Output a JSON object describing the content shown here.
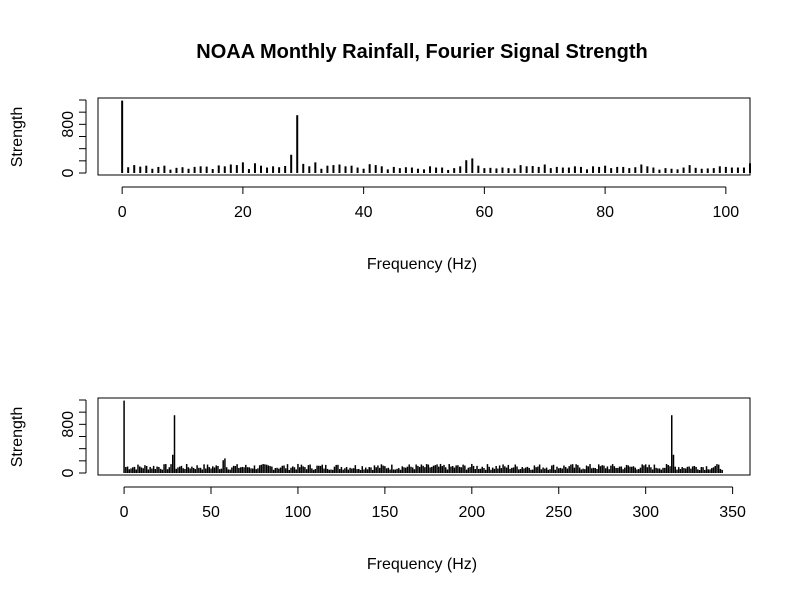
{
  "title": "NOAA Monthly Rainfall, Fourier Signal Strength",
  "chart_data": [
    {
      "type": "bar",
      "title": "NOAA Monthly Rainfall, Fourier Signal Strength",
      "xlabel": "Frequency (Hz)",
      "ylabel": "Strength",
      "xlim": [
        -4,
        104
      ],
      "ylim": [
        0,
        1200
      ],
      "x_ticks": [
        0,
        20,
        40,
        60,
        80,
        100
      ],
      "y_ticks": [
        0,
        800
      ],
      "grid": false,
      "x": [
        0,
        1,
        2,
        3,
        4,
        5,
        6,
        7,
        8,
        9,
        10,
        11,
        12,
        13,
        14,
        15,
        16,
        17,
        18,
        19,
        20,
        21,
        22,
        23,
        24,
        25,
        26,
        27,
        28,
        29,
        30,
        31,
        32,
        33,
        34,
        35,
        36,
        37,
        38,
        39,
        40,
        41,
        42,
        43,
        44,
        45,
        46,
        47,
        48,
        49,
        50,
        51,
        52,
        53,
        54,
        55,
        56,
        57,
        58,
        59,
        60,
        61,
        62,
        63,
        64,
        65,
        66,
        67,
        68,
        69,
        70,
        71,
        72,
        73,
        74,
        75,
        76,
        77,
        78,
        79,
        80,
        81,
        82,
        83,
        84,
        85,
        86,
        87,
        88,
        89,
        90,
        91,
        92,
        93,
        94,
        95,
        96,
        97,
        98,
        99,
        100,
        101,
        102,
        103,
        104
      ],
      "values": [
        1190,
        95,
        130,
        105,
        120,
        70,
        100,
        120,
        55,
        85,
        95,
        70,
        100,
        110,
        105,
        65,
        125,
        110,
        140,
        130,
        175,
        65,
        160,
        120,
        90,
        110,
        95,
        115,
        300,
        950,
        150,
        110,
        175,
        70,
        120,
        130,
        140,
        110,
        120,
        90,
        70,
        145,
        130,
        110,
        60,
        100,
        80,
        95,
        90,
        70,
        60,
        110,
        90,
        90,
        50,
        80,
        110,
        210,
        240,
        120,
        80,
        85,
        75,
        90,
        80,
        75,
        130,
        110,
        115,
        100,
        140,
        80,
        100,
        90,
        90,
        110,
        100,
        60,
        110,
        100,
        120,
        80,
        100,
        100,
        80,
        95,
        140,
        110,
        90,
        55,
        80,
        70,
        60,
        90,
        130,
        85,
        70,
        75,
        80,
        110,
        100,
        90,
        90,
        90,
        160
      ]
    },
    {
      "type": "bar",
      "xlabel": "Frequency (Hz)",
      "ylabel": "Strength",
      "xlim": [
        -15,
        360
      ],
      "ylim": [
        0,
        1200
      ],
      "x_ticks": [
        0,
        50,
        100,
        150,
        200,
        250,
        300,
        350
      ],
      "y_ticks": [
        0,
        800
      ],
      "grid": false,
      "x_range": [
        0,
        344
      ],
      "peaks": [
        {
          "x": 0,
          "value": 1190
        },
        {
          "x": 28,
          "value": 300
        },
        {
          "x": 29,
          "value": 950
        },
        {
          "x": 57,
          "value": 210
        },
        {
          "x": 58,
          "value": 240
        },
        {
          "x": 315,
          "value": 950
        },
        {
          "x": 316,
          "value": 300
        }
      ],
      "baseline_range": [
        50,
        150
      ]
    }
  ]
}
